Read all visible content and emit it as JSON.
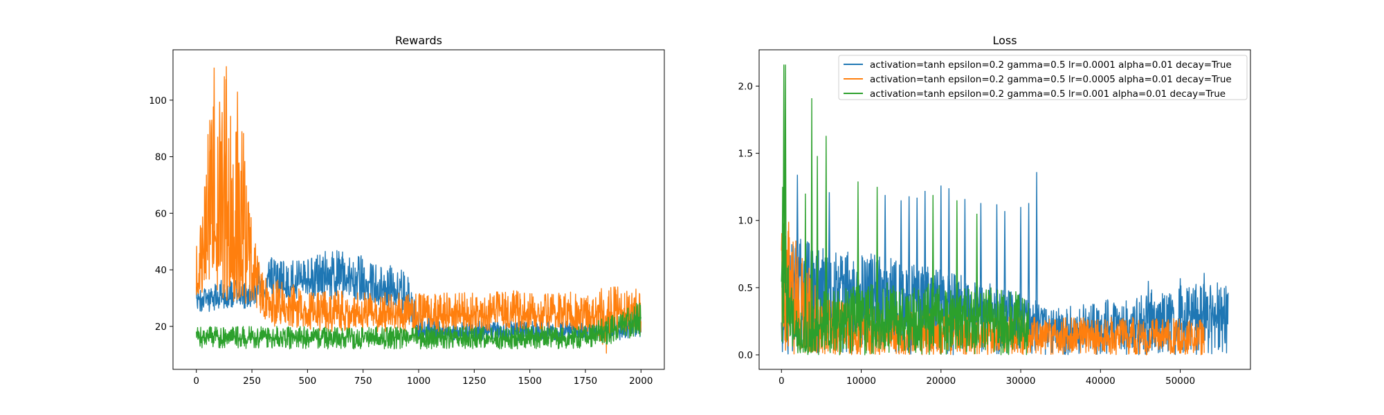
{
  "chart_data": [
    {
      "type": "line",
      "title": "Rewards",
      "xlabel": "",
      "ylabel": "",
      "xlim": [
        -105,
        2105
      ],
      "ylim": [
        4.8,
        117.8
      ],
      "x_ticks": [
        0,
        250,
        500,
        750,
        1000,
        1250,
        1500,
        1750,
        2000
      ],
      "x_tick_labels": [
        "0",
        "250",
        "500",
        "750",
        "1000",
        "1250",
        "1500",
        "1750",
        "2000"
      ],
      "y_ticks": [
        20,
        40,
        60,
        80,
        100
      ],
      "y_tick_labels": [
        "20",
        "40",
        "60",
        "80",
        "100"
      ],
      "grid": false,
      "series": [
        {
          "color": "#1f77b4",
          "x": [
            0,
            50,
            100,
            150,
            200,
            250,
            300,
            350,
            400,
            450,
            500,
            550,
            600,
            650,
            700,
            750,
            800,
            850,
            900,
            950,
            1000,
            1100,
            1200,
            1300,
            1400,
            1500,
            1600,
            1700,
            1800,
            1900,
            1950,
            2000
          ],
          "y_mid": [
            30,
            30,
            31,
            30,
            31,
            31,
            33,
            34,
            34,
            35,
            36,
            36,
            37,
            37,
            37,
            36,
            35,
            34,
            32,
            28,
            19,
            18,
            18,
            18,
            18,
            18,
            18,
            18,
            18,
            19,
            21,
            22
          ],
          "y_low": [
            25,
            25,
            26,
            26,
            26,
            27,
            29,
            29,
            30,
            29,
            30,
            29,
            29,
            30,
            30,
            29,
            28,
            27,
            25,
            22,
            16,
            15,
            15,
            15,
            15,
            15,
            15,
            15,
            15,
            15,
            16,
            16
          ],
          "y_high": [
            35,
            35,
            37,
            36,
            37,
            37,
            47,
            44,
            44,
            44,
            45,
            46,
            47,
            47,
            47,
            45,
            43,
            42,
            41,
            39,
            25,
            22,
            22,
            22,
            22,
            22,
            22,
            22,
            22,
            24,
            26,
            27
          ]
        },
        {
          "color": "#ff7f0e",
          "x": [
            0,
            25,
            50,
            75,
            100,
            125,
            150,
            175,
            200,
            225,
            250,
            275,
            300,
            350,
            400,
            500,
            600,
            700,
            800,
            900,
            1000,
            1100,
            1200,
            1300,
            1400,
            1500,
            1600,
            1700,
            1800,
            1850,
            1900,
            2000
          ],
          "y_mid": [
            45,
            42,
            48,
            50,
            55,
            50,
            52,
            48,
            50,
            45,
            40,
            35,
            30,
            28,
            27,
            26,
            25,
            25,
            24,
            24,
            24,
            24,
            24,
            24,
            24,
            24,
            24,
            24,
            24,
            24,
            25,
            25
          ],
          "y_low": [
            30,
            28,
            28,
            28,
            29,
            28,
            29,
            28,
            28,
            27,
            27,
            26,
            22,
            20,
            20,
            19,
            18,
            18,
            18,
            18,
            18,
            18,
            18,
            18,
            18,
            18,
            18,
            18,
            18,
            9,
            18,
            18
          ],
          "y_high": [
            59,
            58,
            88,
            111,
            98,
            112,
            103,
            90,
            103,
            75,
            57,
            48,
            38,
            37,
            36,
            33,
            33,
            32,
            32,
            32,
            32,
            32,
            32,
            32,
            33,
            32,
            32,
            33,
            33,
            34,
            34,
            33
          ],
          "spikes": [
            [
              80,
              111.5
            ],
            [
              135,
              112
            ],
            [
              185,
              103
            ],
            [
              205,
              89
            ],
            [
              60,
              82
            ]
          ]
        },
        {
          "color": "#2ca02c",
          "x": [
            0,
            100,
            200,
            300,
            400,
            500,
            600,
            700,
            800,
            900,
            1000,
            1100,
            1200,
            1300,
            1400,
            1500,
            1600,
            1700,
            1800,
            1900,
            1950,
            2000
          ],
          "y_mid": [
            16,
            16,
            16,
            16,
            16,
            16,
            16,
            16,
            16,
            16,
            16,
            16,
            16,
            16,
            16,
            16,
            16,
            16,
            17,
            19,
            21,
            23
          ],
          "y_low": [
            12,
            12,
            12,
            12,
            12,
            12,
            12,
            12,
            12,
            12,
            12,
            12,
            12,
            12,
            12,
            12,
            12,
            12,
            13,
            14,
            15,
            16
          ],
          "y_high": [
            20,
            20,
            20,
            20,
            20,
            20,
            20,
            20,
            20,
            20,
            20,
            20,
            20,
            20,
            20,
            20,
            20,
            20,
            22,
            25,
            27,
            29
          ]
        }
      ]
    },
    {
      "type": "line",
      "title": "Loss",
      "xlabel": "",
      "ylabel": "",
      "xlim": [
        -2800,
        58800
      ],
      "ylim": [
        -0.108,
        2.27
      ],
      "x_ticks": [
        0,
        10000,
        20000,
        30000,
        40000,
        50000
      ],
      "x_tick_labels": [
        "0",
        "10000",
        "20000",
        "30000",
        "40000",
        "50000"
      ],
      "y_ticks": [
        0.0,
        0.5,
        1.0,
        1.5,
        2.0
      ],
      "y_tick_labels": [
        "0.0",
        "0.5",
        "1.0",
        "1.5",
        "2.0"
      ],
      "grid": false,
      "legend_position": "top-right",
      "series": [
        {
          "name": "activation=tanh epsilon=0.2 gamma=0.5 lr=0.0001 alpha=0.01 decay=True",
          "color": "#1f77b4",
          "x": [
            0,
            300,
            1000,
            2000,
            5000,
            10000,
            15000,
            20000,
            25000,
            30000,
            32000,
            33000,
            35000,
            40000,
            45000,
            50000,
            55000,
            56000
          ],
          "y_mid": [
            0.15,
            0.15,
            0.5,
            0.6,
            0.55,
            0.5,
            0.45,
            0.4,
            0.35,
            0.3,
            0.28,
            0.2,
            0.17,
            0.2,
            0.23,
            0.25,
            0.27,
            0.27
          ],
          "y_low": [
            0.0,
            0.0,
            0.0,
            0.0,
            0.0,
            0.0,
            0.0,
            0.0,
            0.0,
            0.0,
            0.0,
            0.0,
            0.0,
            0.0,
            0.0,
            0.0,
            0.0,
            0.0
          ],
          "y_high": [
            0.3,
            0.25,
            0.85,
            0.88,
            0.83,
            0.77,
            0.7,
            0.63,
            0.56,
            0.45,
            0.4,
            0.35,
            0.35,
            0.4,
            0.47,
            0.52,
            0.54,
            0.54
          ],
          "spikes": [
            [
              2000,
              1.34
            ],
            [
              6000,
              1.21
            ],
            [
              13000,
              1.19
            ],
            [
              15000,
              1.15
            ],
            [
              16000,
              1.18
            ],
            [
              17000,
              1.17
            ],
            [
              18000,
              1.22
            ],
            [
              20000,
              1.26
            ],
            [
              21000,
              1.24
            ],
            [
              23000,
              1.16
            ],
            [
              25000,
              1.13
            ],
            [
              27000,
              1.12
            ],
            [
              28000,
              1.07
            ],
            [
              30000,
              1.1
            ],
            [
              31000,
              1.13
            ],
            [
              32000,
              1.36
            ],
            [
              46000,
              0.55
            ],
            [
              50000,
              0.57
            ],
            [
              53000,
              0.61
            ]
          ]
        },
        {
          "name": "activation=tanh epsilon=0.2 gamma=0.5 lr=0.0005 alpha=0.01 decay=True",
          "color": "#ff7f0e",
          "x": [
            0,
            500,
            1000,
            2000,
            3000,
            5000,
            10000,
            20000,
            30000,
            32000,
            35000,
            40000,
            45000,
            50000,
            53000
          ],
          "y_mid": [
            0.3,
            0.6,
            0.5,
            0.35,
            0.25,
            0.15,
            0.14,
            0.14,
            0.14,
            0.14,
            0.13,
            0.13,
            0.13,
            0.13,
            0.13
          ],
          "y_low": [
            0.0,
            0.0,
            0.0,
            0.0,
            0.0,
            0.0,
            0.0,
            0.0,
            0.0,
            0.0,
            0.0,
            0.0,
            0.0,
            0.0,
            0.0
          ],
          "y_high": [
            0.97,
            0.98,
            0.9,
            0.8,
            0.75,
            0.45,
            0.35,
            0.3,
            0.3,
            0.28,
            0.28,
            0.28,
            0.28,
            0.27,
            0.26
          ],
          "spikes": [
            [
              900,
              0.99
            ],
            [
              1800,
              0.85
            ],
            [
              2600,
              0.72
            ],
            [
              3200,
              0.61
            ]
          ]
        },
        {
          "name": "activation=tanh epsilon=0.2 gamma=0.5 lr=0.001 alpha=0.01 decay=True",
          "color": "#2ca02c",
          "x": [
            0,
            300,
            600,
            1000,
            2000,
            3000,
            4000,
            6000,
            10000,
            15000,
            20000,
            25000,
            30000,
            31000
          ],
          "y_mid": [
            0.4,
            0.6,
            0.5,
            0.3,
            0.1,
            0.05,
            0.15,
            0.25,
            0.25,
            0.25,
            0.25,
            0.25,
            0.24,
            0.24
          ],
          "y_low": [
            0.0,
            0.0,
            0.0,
            0.0,
            0.0,
            0.0,
            0.0,
            0.0,
            0.0,
            0.0,
            0.0,
            0.0,
            0.0,
            0.0
          ],
          "y_high": [
            1.25,
            1.0,
            0.9,
            0.6,
            0.3,
            0.35,
            0.45,
            0.48,
            0.52,
            0.55,
            0.53,
            0.5,
            0.5,
            0.5
          ],
          "spikes": [
            [
              150,
              1.25
            ],
            [
              300,
              2.16
            ],
            [
              500,
              2.16
            ],
            [
              3800,
              1.91
            ],
            [
              4500,
              1.48
            ],
            [
              5600,
              1.63
            ],
            [
              9600,
              1.29
            ],
            [
              12000,
              1.25
            ],
            [
              19000,
              1.19
            ],
            [
              22000,
              1.15
            ],
            [
              24500,
              1.05
            ],
            [
              3000,
              1.2
            ]
          ]
        }
      ]
    }
  ]
}
